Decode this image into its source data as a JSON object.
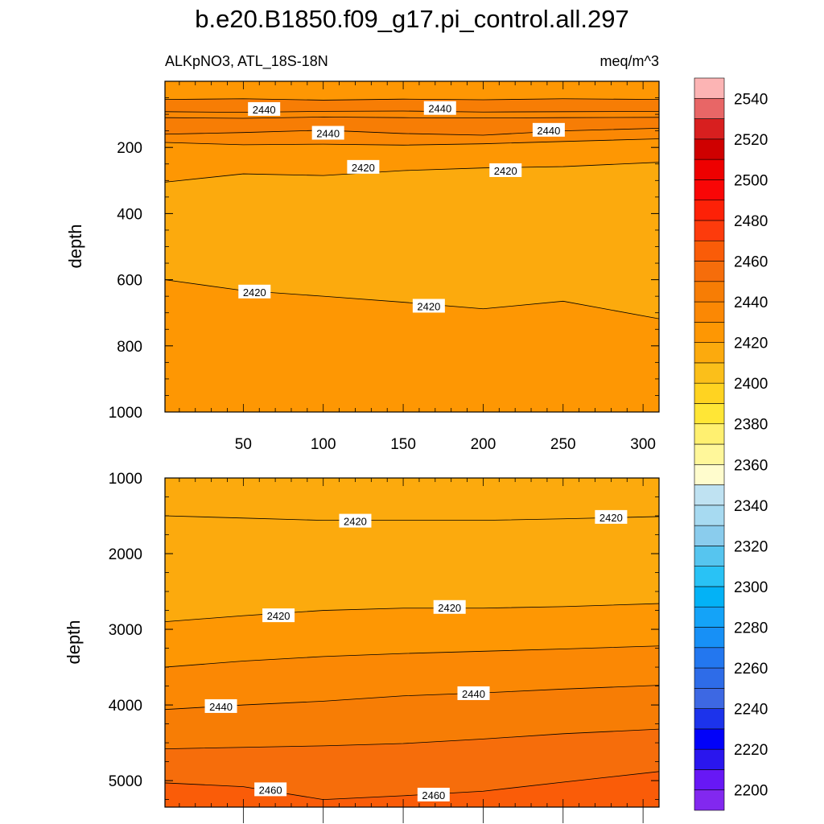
{
  "chart_data": [
    {
      "type": "contour",
      "panel": "upper",
      "title": "b.e20.B1850.f09_g17.pi_control.all.297",
      "left_subtitle": "ALKpNO3, ATL_18S-18N",
      "right_subtitle": "meq/m^3",
      "ylabel": "depth",
      "xlabel": "",
      "xlim": [
        1,
        310
      ],
      "ylim": [
        1000,
        0
      ],
      "x_ticks": [
        50,
        100,
        150,
        200,
        250,
        300
      ],
      "y_ticks": [
        200,
        400,
        600,
        800,
        1000
      ],
      "grid": false,
      "contour_lines": [
        {
          "level": 2440,
          "x": [
            1,
            50,
            100,
            150,
            200,
            250,
            310
          ],
          "depth": [
            55,
            53,
            57,
            54,
            56,
            53,
            55
          ]
        },
        {
          "level": 2440,
          "x": [
            1,
            50,
            100,
            150,
            200,
            250,
            310
          ],
          "depth": [
            92,
            94,
            91,
            90,
            93,
            92,
            91
          ]
        },
        {
          "level": 2440,
          "x": [
            1,
            50,
            100,
            150,
            200,
            250,
            310
          ],
          "depth": [
            110,
            112,
            108,
            110,
            111,
            110,
            109
          ]
        },
        {
          "level": 2440,
          "x": [
            1,
            50,
            100,
            150,
            200,
            250,
            310
          ],
          "depth": [
            160,
            155,
            148,
            158,
            163,
            150,
            142
          ]
        },
        {
          "level": 2420,
          "x": [
            1,
            50,
            100,
            150,
            200,
            250,
            310
          ],
          "depth": [
            185,
            192,
            190,
            193,
            189,
            182,
            174
          ]
        },
        {
          "level": 2420,
          "x": [
            1,
            50,
            100,
            150,
            200,
            250,
            310
          ],
          "depth": [
            305,
            280,
            285,
            270,
            262,
            258,
            245
          ]
        },
        {
          "level": 2420,
          "x": [
            1,
            50,
            100,
            150,
            200,
            250,
            310
          ],
          "depth": [
            600,
            633,
            650,
            668,
            688,
            665,
            718
          ]
        }
      ],
      "contour_labels": [
        {
          "text": "2440",
          "x": 63,
          "depth": 85
        },
        {
          "text": "2440",
          "x": 173,
          "depth": 82
        },
        {
          "text": "2440",
          "x": 103,
          "depth": 157
        },
        {
          "text": "2440",
          "x": 241,
          "depth": 148
        },
        {
          "text": "2420",
          "x": 125,
          "depth": 260
        },
        {
          "text": "2420",
          "x": 214,
          "depth": 270
        },
        {
          "text": "2420",
          "x": 57,
          "depth": 637
        },
        {
          "text": "2420",
          "x": 166,
          "depth": 680
        }
      ]
    },
    {
      "type": "contour",
      "panel": "lower",
      "ylabel": "depth",
      "xlim": [
        1,
        310
      ],
      "ylim": [
        5350,
        1000
      ],
      "y_ticks": [
        1000,
        2000,
        3000,
        4000,
        5000
      ],
      "grid": false,
      "contour_lines": [
        {
          "level": 2420,
          "x": [
            1,
            50,
            100,
            150,
            200,
            250,
            310
          ],
          "depth": [
            1500,
            1530,
            1560,
            1560,
            1560,
            1540,
            1510
          ]
        },
        {
          "level": 2420,
          "x": [
            1,
            50,
            100,
            150,
            200,
            250,
            310
          ],
          "depth": [
            2900,
            2820,
            2750,
            2720,
            2720,
            2700,
            2660
          ]
        },
        {
          "level": 2440,
          "x": [
            1,
            50,
            100,
            150,
            200,
            250,
            310
          ],
          "depth": [
            3500,
            3420,
            3360,
            3320,
            3290,
            3260,
            3220
          ]
        },
        {
          "level": 2440,
          "x": [
            1,
            50,
            100,
            150,
            200,
            250,
            310
          ],
          "depth": [
            4060,
            4000,
            3950,
            3880,
            3840,
            3790,
            3740
          ]
        },
        {
          "level": 2460,
          "x": [
            1,
            50,
            100,
            150,
            200,
            250,
            310
          ],
          "depth": [
            4580,
            4560,
            4540,
            4510,
            4450,
            4380,
            4320
          ]
        },
        {
          "level": 2460,
          "x": [
            1,
            50,
            100,
            150,
            200,
            250,
            310
          ],
          "depth": [
            5030,
            5080,
            5250,
            5200,
            5140,
            5020,
            4880
          ]
        }
      ],
      "contour_labels": [
        {
          "text": "2420",
          "x": 120,
          "depth": 1570
        },
        {
          "text": "2420",
          "x": 280,
          "depth": 1520
        },
        {
          "text": "2420",
          "x": 72,
          "depth": 2820
        },
        {
          "text": "2420",
          "x": 179,
          "depth": 2710
        },
        {
          "text": "2440",
          "x": 36,
          "depth": 4020
        },
        {
          "text": "2440",
          "x": 194,
          "depth": 3850
        },
        {
          "text": "2460",
          "x": 67,
          "depth": 5120
        },
        {
          "text": "2460",
          "x": 169,
          "depth": 5190
        }
      ]
    }
  ],
  "colorbar": {
    "levels": [
      2190,
      2200,
      2210,
      2220,
      2230,
      2240,
      2250,
      2260,
      2270,
      2280,
      2290,
      2300,
      2310,
      2320,
      2330,
      2340,
      2350,
      2360,
      2370,
      2380,
      2390,
      2400,
      2410,
      2420,
      2430,
      2440,
      2450,
      2460,
      2470,
      2480,
      2490,
      2500,
      2510,
      2520,
      2530,
      2540,
      2550
    ],
    "colors_bottom_to_top": [
      "#8228ef",
      "#6718f5",
      "#2a16ee",
      "#0202f9",
      "#1c33eb",
      "#3d68e3",
      "#2e6ce8",
      "#2377ef",
      "#1790f6",
      "#14a3f8",
      "#03b2f6",
      "#29c2f5",
      "#56c5ef",
      "#8acced",
      "#a7daf1",
      "#bfe2f2",
      "#fffccd",
      "#fff79a",
      "#fff070",
      "#ffe636",
      "#ffd321",
      "#fbbf1a",
      "#fcaa0d",
      "#fe9703",
      "#fb8804",
      "#f77d05",
      "#f66d0b",
      "#fa5c08",
      "#fd3b0c",
      "#fd2107",
      "#f90606",
      "#ee0000",
      "#cf0000",
      "#d81f1f",
      "#e86666",
      "#fcb4b4"
    ],
    "tick_labels": [
      "2200",
      "2220",
      "2240",
      "2260",
      "2280",
      "2300",
      "2320",
      "2340",
      "2360",
      "2380",
      "2400",
      "2420",
      "2440",
      "2460",
      "2480",
      "2500",
      "2520",
      "2540"
    ]
  }
}
